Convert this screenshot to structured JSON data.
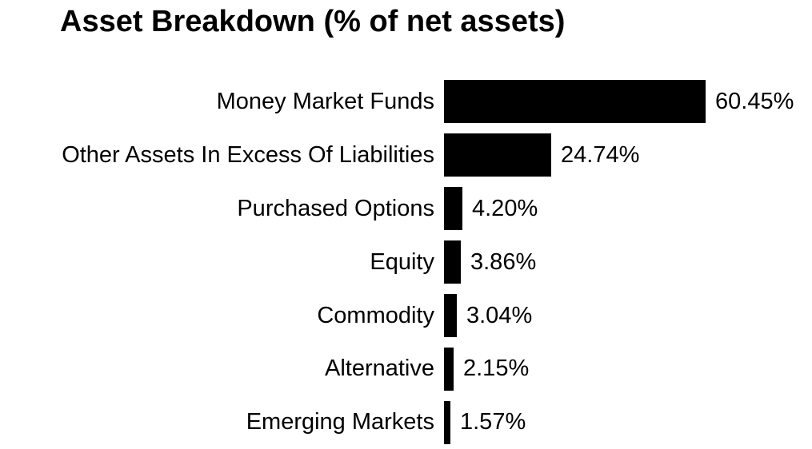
{
  "title": "Asset Breakdown (% of net assets)",
  "chart_data": {
    "type": "bar",
    "orientation": "horizontal",
    "title": "Asset Breakdown (% of net assets)",
    "categories": [
      "Money Market Funds",
      "Other Assets In Excess Of Liabilities",
      "Purchased Options",
      "Equity",
      "Commodity",
      "Alternative",
      "Emerging Markets"
    ],
    "values": [
      60.45,
      24.74,
      4.2,
      3.86,
      3.04,
      2.15,
      1.57
    ],
    "value_labels": [
      "60.45%",
      "24.74%",
      "4.20%",
      "3.86%",
      "3.04%",
      "2.15%",
      "1.57%"
    ],
    "xlim": [
      0,
      62
    ],
    "bar_color": "#000000",
    "background_color": "#ffffff",
    "text_color": "#000000",
    "grid": false,
    "legend": false,
    "value_label_position": "right-of-bar",
    "category_label_position": "left-of-bar"
  }
}
